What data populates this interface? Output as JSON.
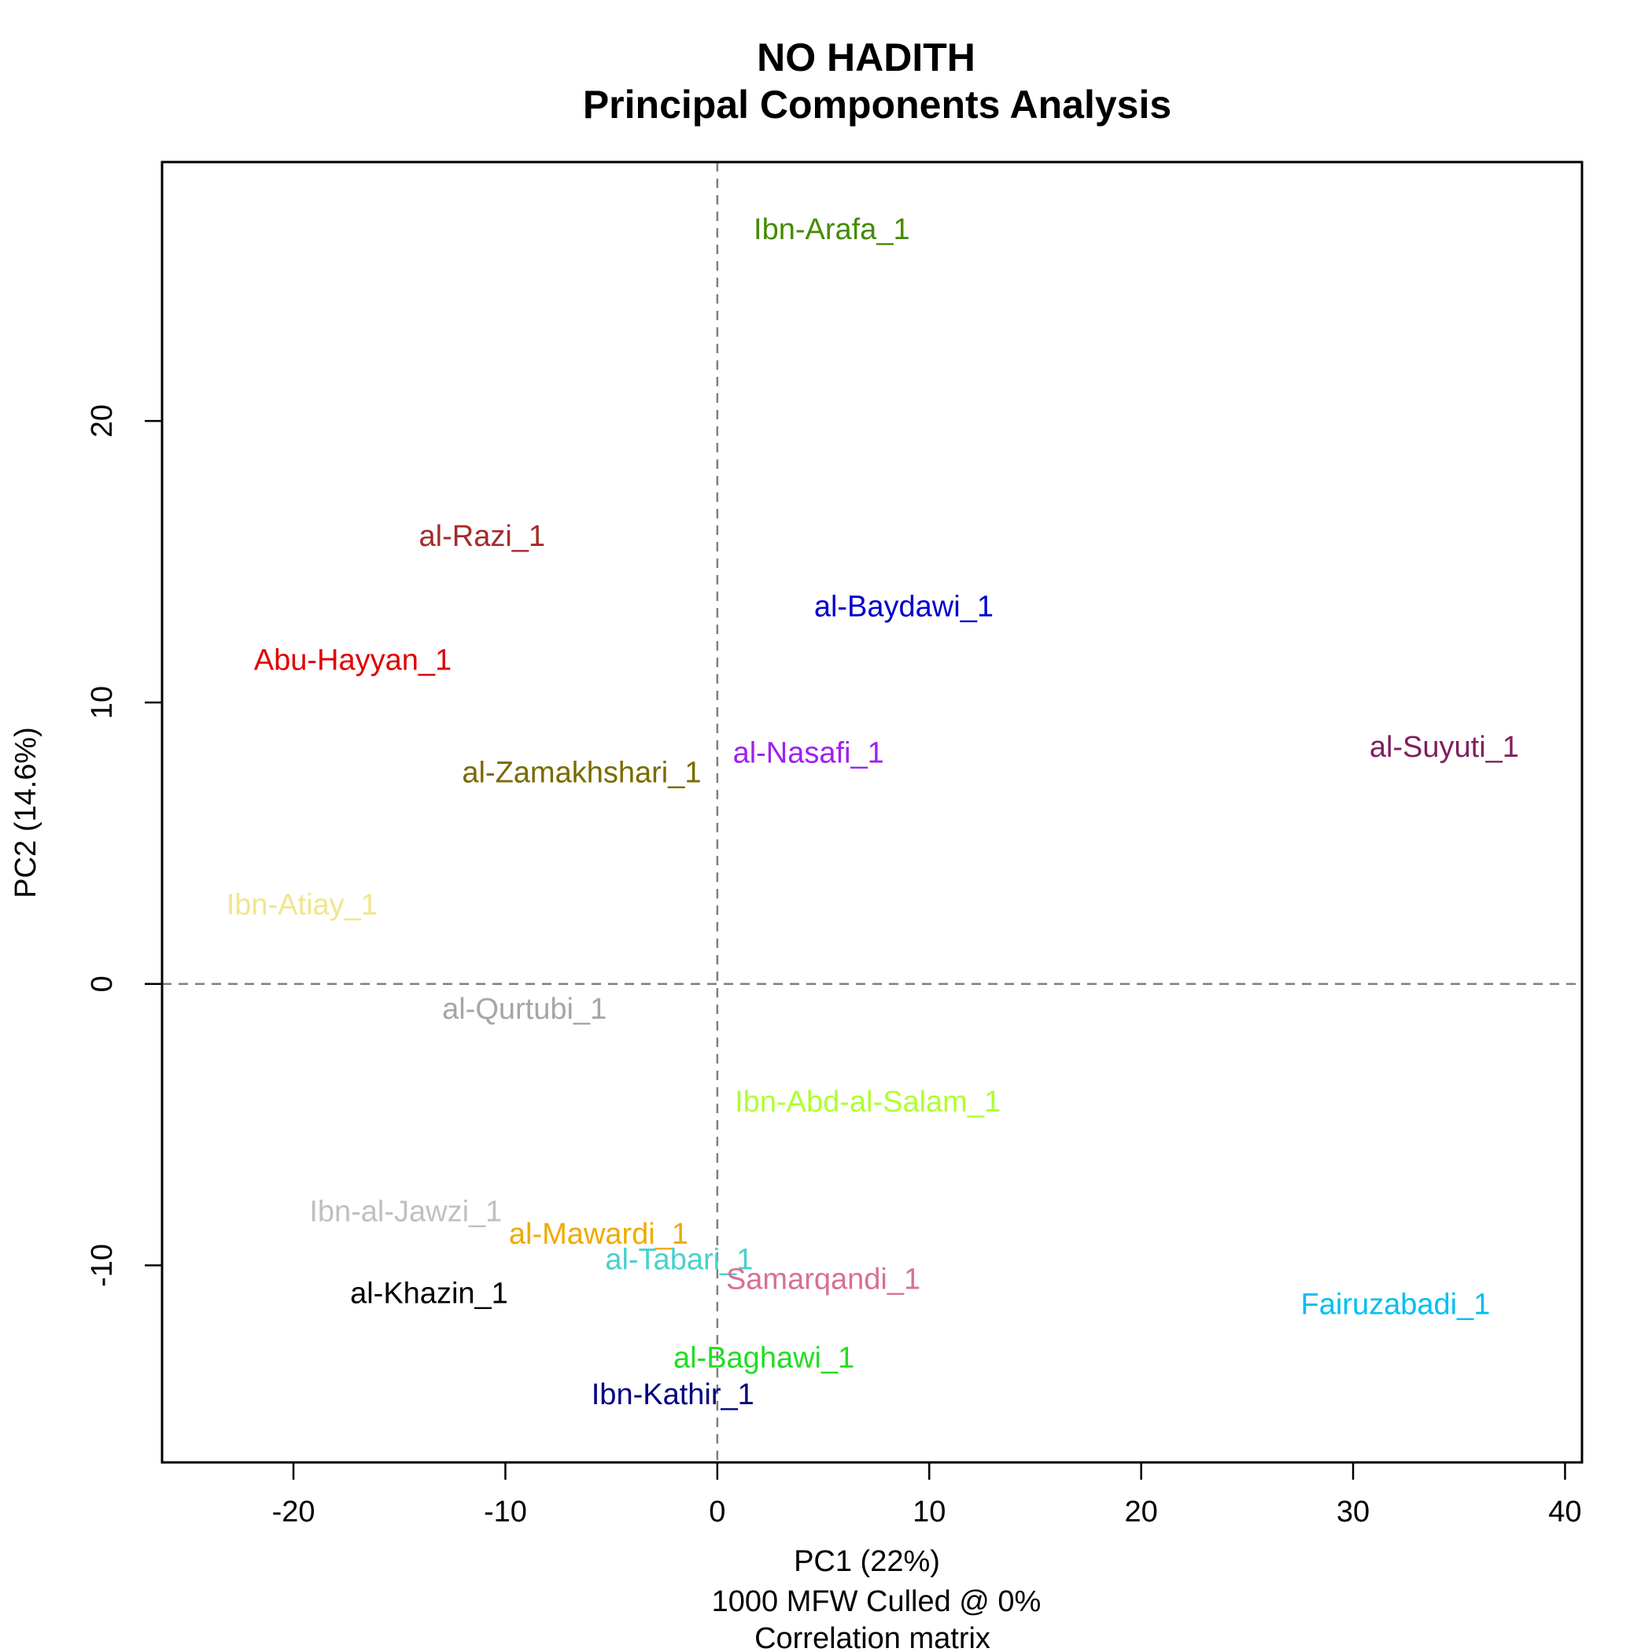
{
  "chart_data": {
    "type": "scatter",
    "title": "NO HADITH",
    "subtitle": "Principal Components Analysis",
    "xlabel": "PC1 (22%)",
    "xlabel_line2": "1000 MFW  Culled @ 0%",
    "xlabel_line3": "Correlation matrix",
    "ylabel": "PC2 (14.6%)",
    "xlim": [
      -26.2,
      40.8
    ],
    "ylim": [
      -17,
      29.2
    ],
    "xticks": [
      -20,
      -10,
      0,
      10,
      20,
      30,
      40
    ],
    "yticks": [
      -10,
      0,
      10,
      20
    ],
    "reference_lines": {
      "x": 0,
      "y": 0,
      "style": "dashed",
      "color": "#808080"
    },
    "grid": false,
    "legend": "none",
    "points": [
      {
        "label": "Ibn-Arafa_1",
        "x": 5.4,
        "y": 26.8,
        "color": "#458b00"
      },
      {
        "label": "al-Razi_1",
        "x": -11.1,
        "y": 15.9,
        "color": "#a52a2a"
      },
      {
        "label": "al-Baydawi_1",
        "x": 8.8,
        "y": 13.4,
        "color": "#0000cd"
      },
      {
        "label": "Abu-Hayyan_1",
        "x": -17.2,
        "y": 11.5,
        "color": "#e00000"
      },
      {
        "label": "al-Nasafi_1",
        "x": 4.3,
        "y": 8.2,
        "color": "#a020f0"
      },
      {
        "label": "al-Suyuti_1",
        "x": 34.3,
        "y": 8.4,
        "color": "#7f1f5f"
      },
      {
        "label": "al-Zamakhshari_1",
        "x": -6.4,
        "y": 7.5,
        "color": "#7a6a00"
      },
      {
        "label": "Ibn-Atiay_1",
        "x": -19.6,
        "y": 2.8,
        "color": "#f0e68c"
      },
      {
        "label": "al-Qurtubi_1",
        "x": -9.1,
        "y": -0.9,
        "color": "#a6a6a6"
      },
      {
        "label": "Ibn-Abd-al-Salam_1",
        "x": 7.1,
        "y": -4.2,
        "color": "#adff2f"
      },
      {
        "label": "Ibn-al-Jawzi_1",
        "x": -14.7,
        "y": -8.1,
        "color": "#c0c0c0"
      },
      {
        "label": "al-Mawardi_1",
        "x": -5.6,
        "y": -8.9,
        "color": "#eeaa00"
      },
      {
        "label": "al-Tabari_1",
        "x": -1.8,
        "y": -9.8,
        "color": "#48d1cc"
      },
      {
        "label": "Samarqandi_1",
        "x": 5.0,
        "y": -10.5,
        "color": "#d87093"
      },
      {
        "label": "al-Khazin_1",
        "x": -13.6,
        "y": -11.0,
        "color": "#000000"
      },
      {
        "label": "Fairuzabadi_1",
        "x": 32.0,
        "y": -11.4,
        "color": "#00bfee"
      },
      {
        "label": "al-Baghawi_1",
        "x": 2.2,
        "y": -13.3,
        "color": "#22dd22"
      },
      {
        "label": "Ibn-Kathir_1",
        "x": -2.1,
        "y": -14.6,
        "color": "#000080"
      }
    ]
  }
}
